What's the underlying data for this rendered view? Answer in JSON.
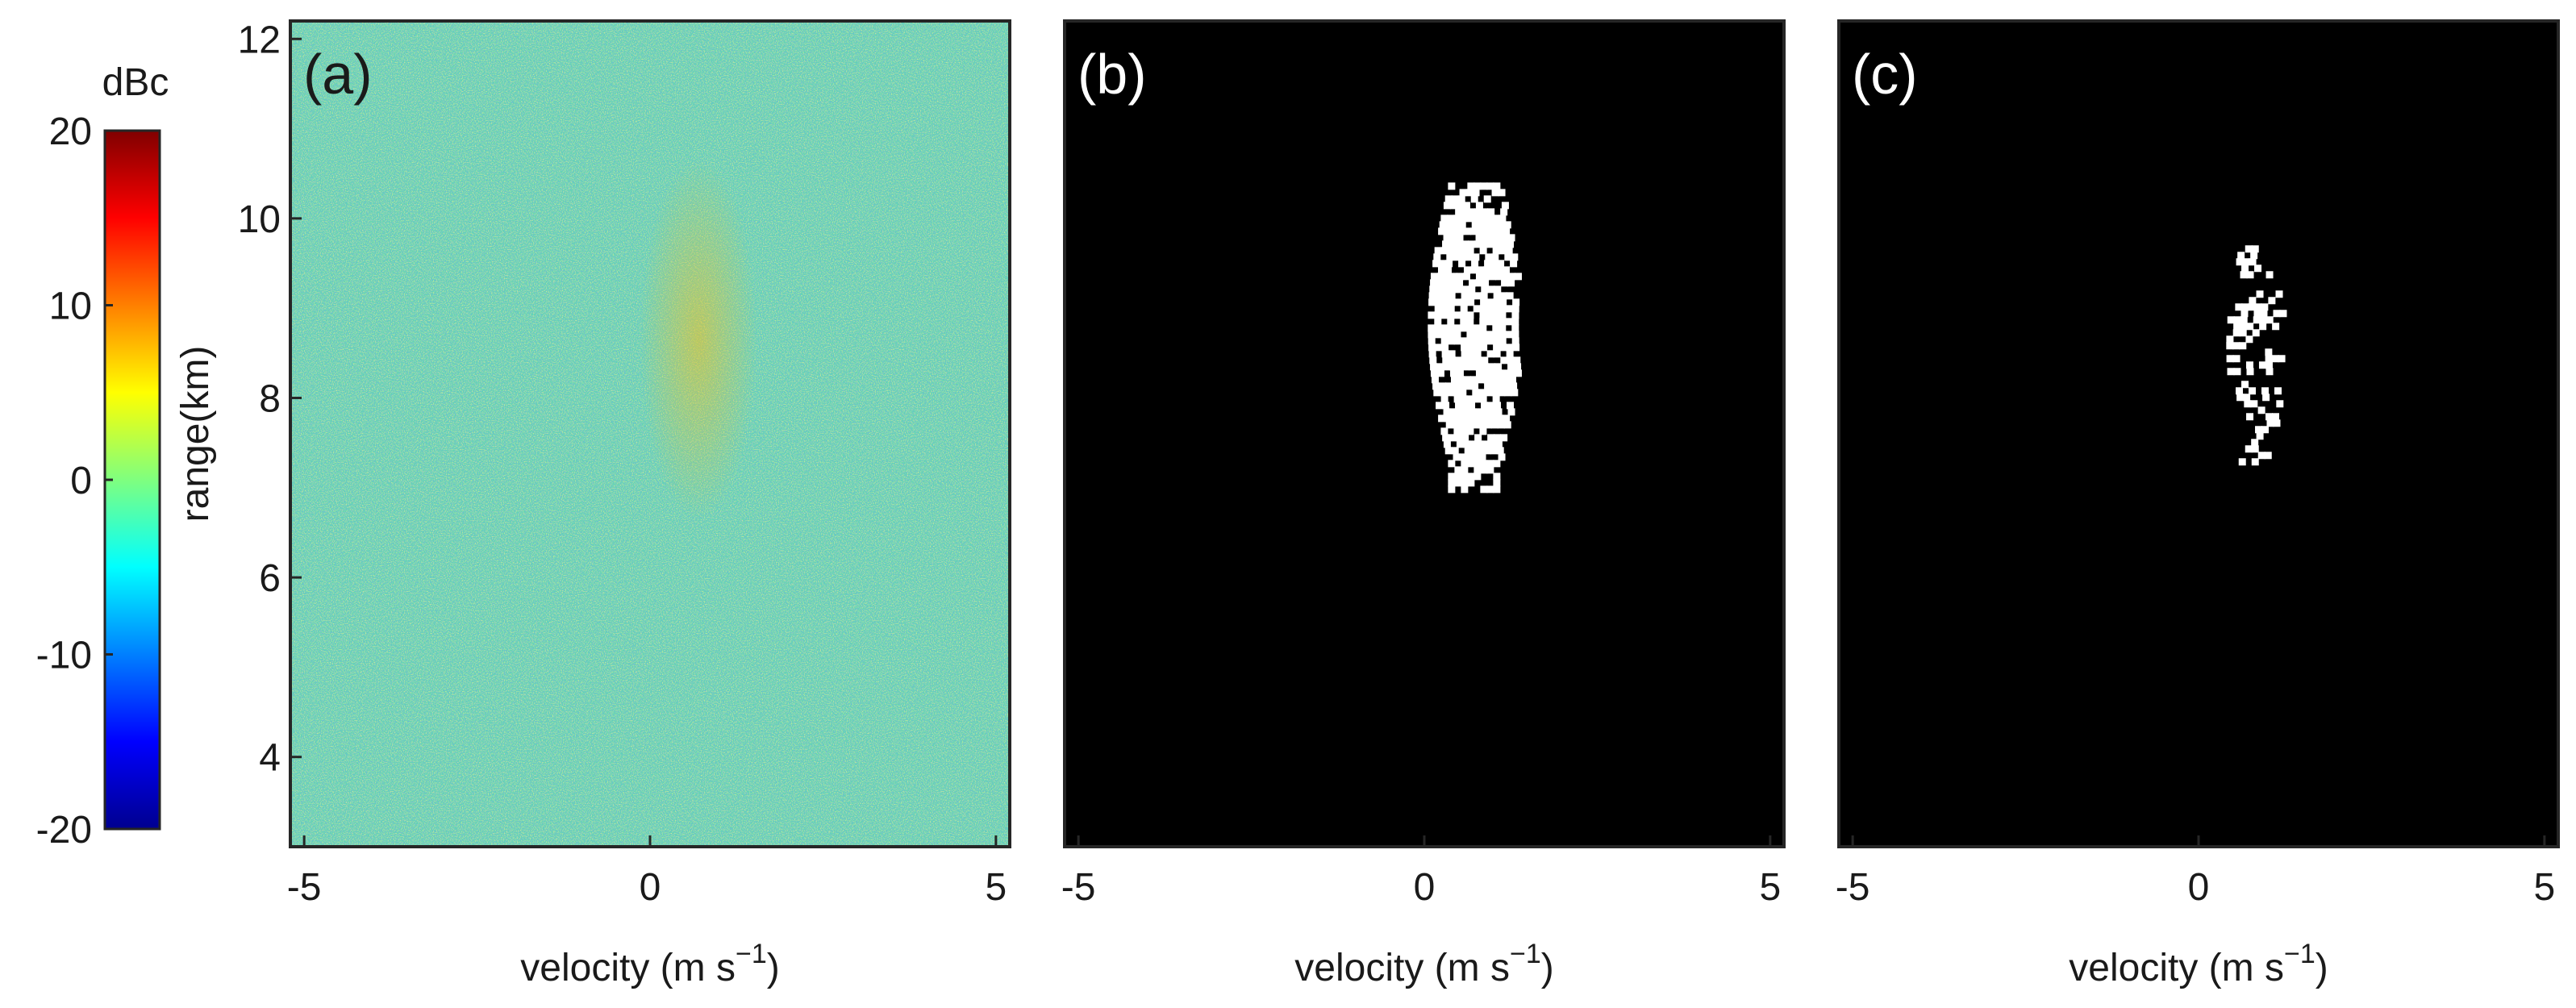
{
  "chart_data": [
    {
      "panel": "(a)",
      "type": "heatmap",
      "title": "",
      "xlabel": "velocity (m s",
      "xlabel_sup": "−1",
      "xlabel_close": ")",
      "ylabel": "range(km)",
      "xlim": [
        -5.2,
        5.2
      ],
      "ylim": [
        3,
        12.2
      ],
      "xticks": [
        -5,
        0,
        5
      ],
      "xtick_labels": [
        "-5",
        "0",
        "5"
      ],
      "yticks": [
        4,
        6,
        8,
        10,
        12
      ],
      "ytick_labels": [
        "4",
        "6",
        "8",
        "10",
        "12"
      ],
      "colorbar": {
        "label": "dBc",
        "range": [
          -20,
          20
        ],
        "ticks": [
          -20,
          -10,
          0,
          10,
          20
        ],
        "tick_labels": [
          "-20",
          "-10",
          "0",
          "10",
          "20"
        ],
        "colormap": "jet"
      },
      "description_values": {
        "background_level_dBc": 0,
        "enhanced_region": {
          "velocity": [
            0.2,
            1.2
          ],
          "range_km": [
            7.0,
            10.3
          ],
          "level_dBc": 8
        }
      }
    },
    {
      "panel": "(b)",
      "type": "heatmap",
      "binary_mask": true,
      "xlabel": "velocity (m s",
      "xlabel_sup": "−1",
      "xlabel_close": ")",
      "xlim": [
        -5.2,
        5.2
      ],
      "ylim": [
        3,
        12.2
      ],
      "xticks": [
        -5,
        0,
        5
      ],
      "xtick_labels": [
        "-5",
        "0",
        "5"
      ],
      "mask_region": {
        "velocity": [
          0.05,
          1.35
        ],
        "range_km": [
          7.0,
          10.4
        ]
      }
    },
    {
      "panel": "(c)",
      "type": "heatmap",
      "binary_mask": true,
      "xlabel": "velocity (m s",
      "xlabel_sup": "−1",
      "xlabel_close": ")",
      "xlim": [
        -5.2,
        5.2
      ],
      "ylim": [
        3,
        12.2
      ],
      "xticks": [
        -5,
        0,
        5
      ],
      "xtick_labels": [
        "-5",
        "0",
        "5"
      ],
      "mask_region": {
        "velocity": [
          0.4,
          1.2
        ],
        "range_km": [
          7.3,
          9.7
        ]
      }
    }
  ]
}
